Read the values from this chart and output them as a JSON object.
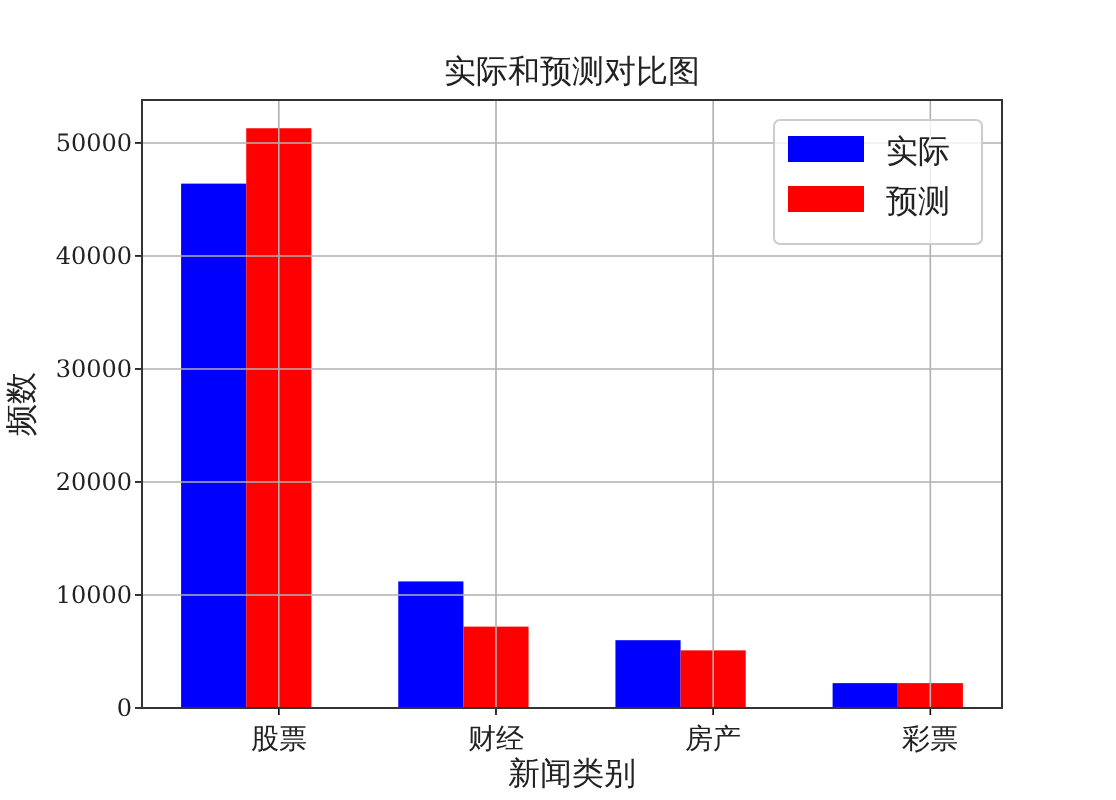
{
  "chart_data": {
    "type": "bar",
    "title": "实际和预测对比图",
    "xlabel": "新闻类别",
    "ylabel": "频数",
    "categories": [
      "股票",
      "财经",
      "房产",
      "彩票"
    ],
    "series": [
      {
        "name": "实际",
        "color": "#0000ff",
        "values": [
          46400,
          11200,
          6000,
          2200
        ]
      },
      {
        "name": "预测",
        "color": "#ff0000",
        "values": [
          51300,
          7200,
          5100,
          2200
        ]
      }
    ],
    "ylim": [
      0,
      53800
    ],
    "yticks": [
      0,
      10000,
      20000,
      30000,
      40000,
      50000
    ],
    "grid": true,
    "legend": "top right"
  }
}
